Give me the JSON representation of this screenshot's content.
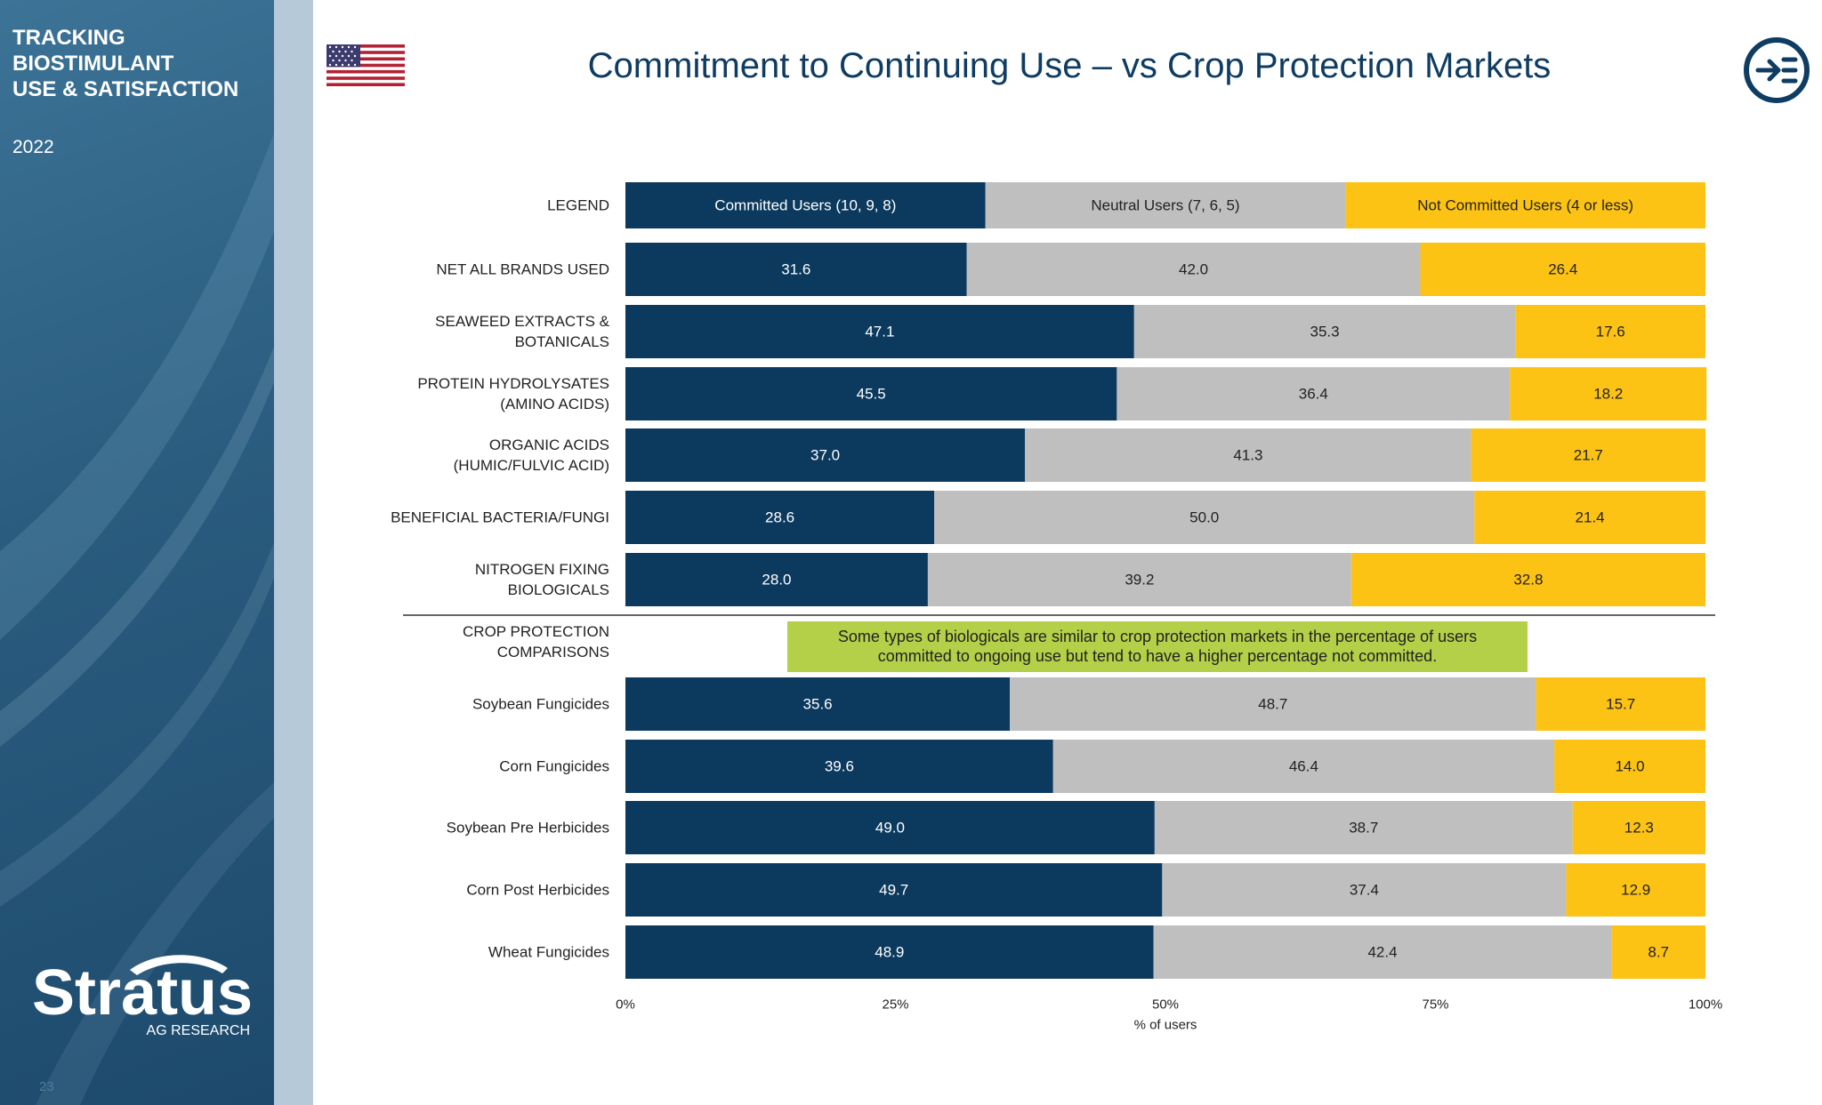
{
  "sidebar": {
    "title_lines": [
      "TRACKING",
      "BIOSTIMULANT",
      "USE & SATISFACTION"
    ],
    "year": "2022",
    "logo_name": "Stratus",
    "logo_sub": "AG RESEARCH",
    "page_number": "23"
  },
  "header": {
    "title": "Commitment to Continuing Use – vs Crop Protection Markets",
    "flag_icon": "us-flag-icon",
    "nav_icon": "arrow-into-list-icon"
  },
  "colors": {
    "committed": "#0c3a5e",
    "neutral": "#c0bfc0",
    "not_committed": "#fcc314",
    "callout": "#b4cf48",
    "title": "#0e3c62"
  },
  "chart_data": {
    "type": "bar",
    "orientation": "horizontal-stacked-100",
    "title": "Commitment to Continuing Use – vs Crop Protection Markets",
    "xlabel": "% of users",
    "xlim": [
      0,
      100
    ],
    "xticks": [
      "0%",
      "25%",
      "50%",
      "75%",
      "100%"
    ],
    "legend_row_label": "LEGEND",
    "series": [
      {
        "name": "Committed Users (10, 9, 8)",
        "key": "committed"
      },
      {
        "name": "Neutral Users (7, 6, 5)",
        "key": "neutral"
      },
      {
        "name": "Not Committed Users (4 or less)",
        "key": "not_committed"
      }
    ],
    "groups": [
      {
        "rows": [
          {
            "label": [
              "NET ALL BRANDS USED"
            ],
            "values": [
              31.6,
              42.0,
              26.4
            ]
          },
          {
            "label": [
              "SEAWEED EXTRACTS &",
              "BOTANICALS"
            ],
            "values": [
              47.1,
              35.3,
              17.6
            ]
          },
          {
            "label": [
              "PROTEIN HYDROLYSATES",
              "(AMINO ACIDS)"
            ],
            "values": [
              45.5,
              36.4,
              18.2
            ]
          },
          {
            "label": [
              "ORGANIC ACIDS",
              "(HUMIC/FULVIC ACID)"
            ],
            "values": [
              37.0,
              41.3,
              21.7
            ]
          },
          {
            "label": [
              "BENEFICIAL BACTERIA/FUNGI"
            ],
            "values": [
              28.6,
              50.0,
              21.4
            ]
          },
          {
            "label": [
              "NITROGEN FIXING",
              "BIOLOGICALS"
            ],
            "values": [
              28.0,
              39.2,
              32.8
            ]
          }
        ]
      },
      {
        "heading": [
          "CROP PROTECTION",
          "COMPARISONS"
        ],
        "annotation": [
          "Some types of biologicals are similar to crop protection markets in the percentage of users",
          "committed to ongoing use but tend to have a higher percentage not committed."
        ],
        "rows": [
          {
            "label": [
              "Soybean Fungicides"
            ],
            "values": [
              35.6,
              48.7,
              15.7
            ]
          },
          {
            "label": [
              "Corn Fungicides"
            ],
            "values": [
              39.6,
              46.4,
              14.0
            ]
          },
          {
            "label": [
              "Soybean Pre Herbicides"
            ],
            "values": [
              49.0,
              38.7,
              12.3
            ]
          },
          {
            "label": [
              "Corn Post Herbicides"
            ],
            "values": [
              49.7,
              37.4,
              12.9
            ]
          },
          {
            "label": [
              "Wheat Fungicides"
            ],
            "values": [
              48.9,
              42.4,
              8.7
            ]
          }
        ]
      }
    ]
  }
}
